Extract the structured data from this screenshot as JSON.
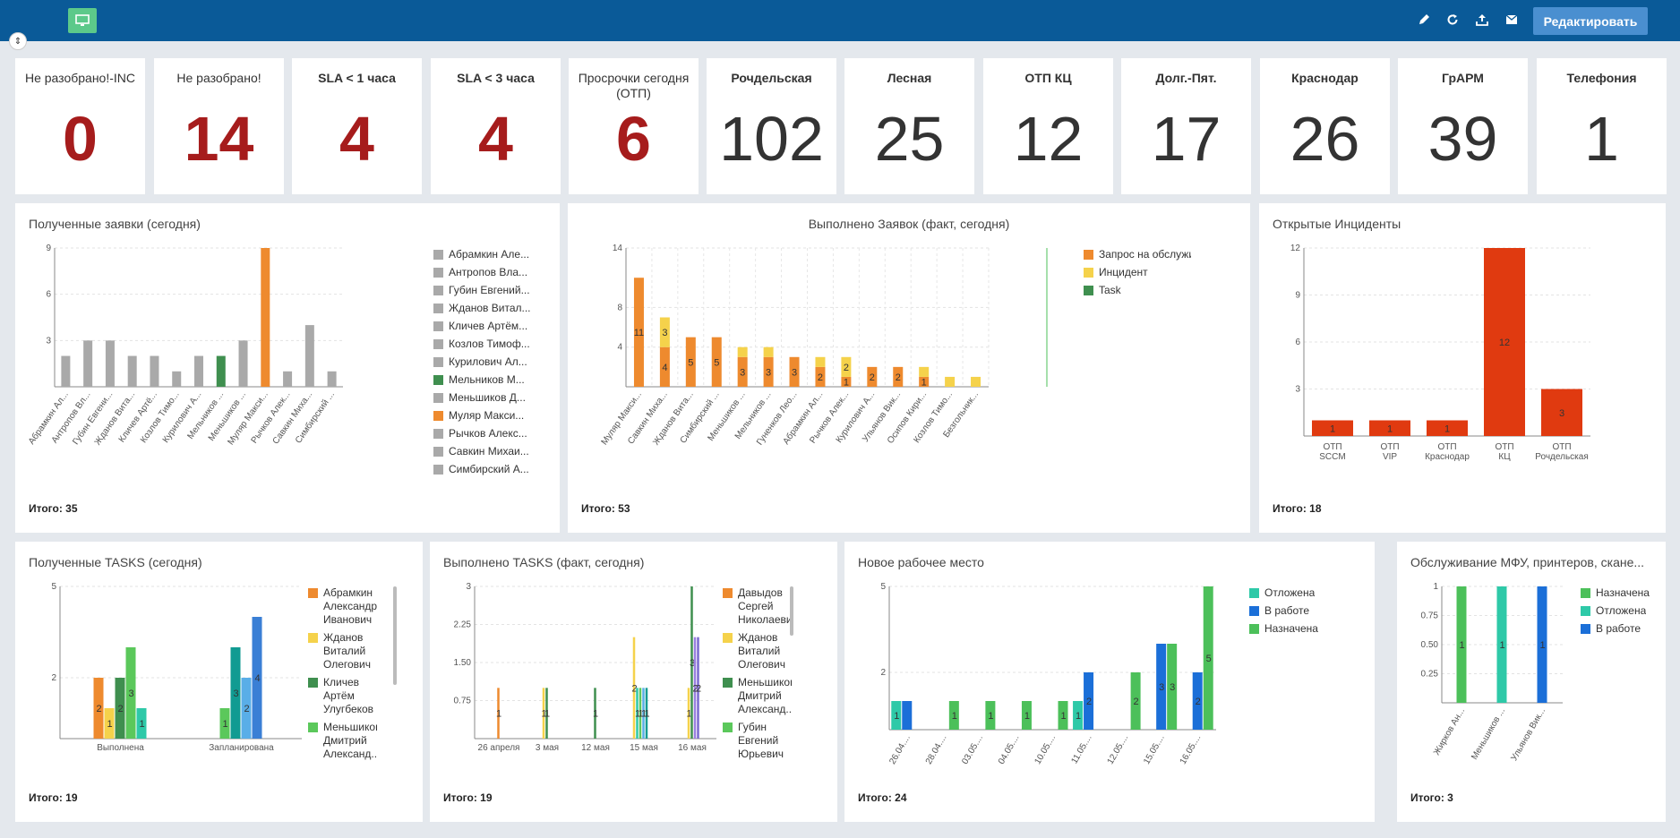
{
  "header": {
    "app_icon": "monitor-icon",
    "icons": [
      "edit-icon",
      "refresh-icon",
      "export-icon",
      "mail-icon"
    ],
    "edit_label": "Редактировать",
    "bg_color": "#0a5a98"
  },
  "kpis": [
    {
      "title": "Не разобрано!-INC",
      "value": "0",
      "style": "red",
      "bold_title": false
    },
    {
      "title": "Не разобрано!",
      "value": "14",
      "style": "red",
      "bold_title": false
    },
    {
      "title": "SLA < 1 часа",
      "value": "4",
      "style": "red",
      "bold_title": true
    },
    {
      "title": "SLA < 3 часа",
      "value": "4",
      "style": "red",
      "bold_title": true
    },
    {
      "title": "Просрочки сегодня (ОТП)",
      "value": "6",
      "style": "red",
      "bold_title": false
    },
    {
      "title": "Рочдельская",
      "value": "102",
      "style": "gray",
      "bold_title": true
    },
    {
      "title": "Лесная",
      "value": "25",
      "style": "gray",
      "bold_title": true
    },
    {
      "title": "ОТП КЦ",
      "value": "12",
      "style": "gray",
      "bold_title": true
    },
    {
      "title": "Долг.-Пят.",
      "value": "17",
      "style": "gray",
      "bold_title": true
    },
    {
      "title": "Краснодар",
      "value": "26",
      "style": "gray",
      "bold_title": true
    },
    {
      "title": "ГрАРМ",
      "value": "39",
      "style": "gray",
      "bold_title": true
    },
    {
      "title": "Телефония",
      "value": "1",
      "style": "gray",
      "bold_title": true
    }
  ],
  "panels": {
    "received": {
      "title": "Полученные заявки (сегодня)",
      "total": "Итого: 35"
    },
    "done": {
      "title": "Выполнено Заявок (факт, сегодня)",
      "total": "Итого: 53"
    },
    "incidents": {
      "title": "Открытые Инциденты",
      "total": "Итого: 18"
    },
    "tasks_received": {
      "title": "Полученные TASKS (сегодня)",
      "total": "Итого: 19"
    },
    "tasks_done": {
      "title": "Выполнено TASKS (факт, сегодня)",
      "total": "Итого: 19"
    },
    "workplace": {
      "title": "Новое рабочее место",
      "total": "Итого: 24"
    },
    "mfu": {
      "title": "Обслуживание МФУ, принтеров, скане...",
      "total": "Итого: 3"
    }
  },
  "chart_data": [
    {
      "id": "received",
      "type": "bar",
      "categories": [
        "Абрамкин Ал...",
        "Антропов Вл...",
        "Губин Евгени...",
        "Жданов Вита...",
        "Кличев Артё...",
        "Козлов Тимо...",
        "Курилович А...",
        "Мельников ...",
        "Меньшиков ...",
        "Муляр Макси...",
        "Рычков Алек...",
        "Савкин Миха...",
        "Симбирский ..."
      ],
      "values": [
        2,
        3,
        3,
        2,
        2,
        1,
        2,
        2,
        3,
        9,
        1,
        4,
        1
      ],
      "colors": [
        "#a9a9a9",
        "#a9a9a9",
        "#a9a9a9",
        "#a9a9a9",
        "#a9a9a9",
        "#a9a9a9",
        "#a9a9a9",
        "#3f8f4f",
        "#a9a9a9",
        "#ee8a2e",
        "#a9a9a9",
        "#a9a9a9",
        "#a9a9a9"
      ],
      "yticks": [
        3,
        6,
        9
      ],
      "ylim": [
        0,
        9
      ],
      "legend": [
        {
          "name": "Абрамкин Але...",
          "color": "#a9a9a9"
        },
        {
          "name": "Антропов Вла...",
          "color": "#a9a9a9"
        },
        {
          "name": "Губин Евгений...",
          "color": "#a9a9a9"
        },
        {
          "name": "Жданов Витал...",
          "color": "#a9a9a9"
        },
        {
          "name": "Кличев Артём...",
          "color": "#a9a9a9"
        },
        {
          "name": "Козлов Тимоф...",
          "color": "#a9a9a9"
        },
        {
          "name": "Курилович Ал...",
          "color": "#a9a9a9"
        },
        {
          "name": "Мельников М...",
          "color": "#3f8f4f"
        },
        {
          "name": "Меньшиков Д...",
          "color": "#a9a9a9"
        },
        {
          "name": "Муляр Макси...",
          "color": "#ee8a2e"
        },
        {
          "name": "Рычков Алекс...",
          "color": "#a9a9a9"
        },
        {
          "name": "Савкин Михаи...",
          "color": "#a9a9a9"
        },
        {
          "name": "Симбирский А...",
          "color": "#a9a9a9"
        }
      ]
    },
    {
      "id": "done",
      "type": "bar",
      "stacked": true,
      "categories": [
        "Муляр Макси...",
        "Савкин Миха...",
        "Жданов Вита...",
        "Симбирский ...",
        "Меньшиков ...",
        "Мельников ...",
        "Гуненков Лео...",
        "Абрамкин Ал...",
        "Рычков Алек...",
        "Курилович А...",
        "Ульянов Вик...",
        "Осипов Кири...",
        "Козлов Тимо...",
        "Безгольник..."
      ],
      "series": [
        {
          "name": "Запрос на обслуживание",
          "color": "#ee8a2e",
          "values": [
            11,
            4,
            5,
            5,
            3,
            3,
            3,
            2,
            1,
            2,
            2,
            1,
            0,
            0
          ],
          "labels": [
            "11",
            "4",
            "5",
            "5",
            "3",
            "3",
            "3",
            "2",
            "1",
            "2",
            "2",
            "1",
            "",
            ""
          ]
        },
        {
          "name": "Инцидент",
          "color": "#f5d24b",
          "values": [
            0,
            3,
            0,
            0,
            1,
            1,
            0,
            1,
            2,
            0,
            0,
            1,
            1,
            1
          ],
          "labels": [
            "",
            "3",
            "",
            "",
            "",
            "",
            "",
            "",
            "2",
            "",
            "",
            "",
            "",
            ""
          ]
        },
        {
          "name": "Task",
          "color": "#3f8f4f",
          "values": [
            0,
            0,
            0,
            0,
            0,
            0,
            0,
            0,
            0,
            0,
            0,
            0,
            0,
            0
          ],
          "labels": []
        }
      ],
      "yticks": [
        4,
        8,
        14
      ],
      "ylim": [
        0,
        14
      ]
    },
    {
      "id": "incidents",
      "type": "bar",
      "categories": [
        "ОТП SCCM",
        "ОТП VIP",
        "ОТП Краснодар",
        "ОТП КЦ",
        "ОТП Рочдельская"
      ],
      "values": [
        1,
        1,
        1,
        12,
        3
      ],
      "color": "#e03a10",
      "yticks": [
        3,
        6,
        9,
        12
      ],
      "ylim": [
        0,
        12
      ]
    },
    {
      "id": "tasks_received",
      "type": "bar",
      "categories": [
        "Выполнена",
        "Запланирована"
      ],
      "series": [
        {
          "name": "Абрамкин Александр Иванович",
          "color": "#ee8a2e",
          "values": [
            2,
            0
          ]
        },
        {
          "name": "Жданов Виталий Олегович",
          "color": "#f5d24b",
          "values": [
            1,
            0
          ]
        },
        {
          "name": "Кличев Артём Улугбеков",
          "color": "#3f8f4f",
          "values": [
            2,
            0
          ]
        },
        {
          "name": "Меньшиков Дмитрий Александ...",
          "color": "#5bc85b",
          "values": [
            3,
            1
          ]
        },
        {
          "name": "",
          "color": "#2ec9a8",
          "values": [
            1,
            0
          ]
        },
        {
          "name": "",
          "color": "#119b92",
          "values": [
            0,
            3
          ]
        },
        {
          "name": "",
          "color": "#59aee8",
          "values": [
            0,
            2
          ]
        },
        {
          "name": "",
          "color": "#3a7fd5",
          "values": [
            0,
            4
          ]
        }
      ],
      "yticks": [
        2,
        5
      ],
      "ylim": [
        0,
        5
      ]
    },
    {
      "id": "tasks_done",
      "type": "bar",
      "categories": [
        "26 апреля",
        "3 мая",
        "12 мая",
        "15 мая",
        "16 мая"
      ],
      "yticks": [
        0.75,
        1.5,
        2.25,
        3
      ],
      "ytick_labels": [
        "0.75",
        "1.50",
        "2.25",
        "3"
      ],
      "ylim": [
        0,
        3
      ],
      "series": [
        {
          "name": "Давыдов Сергей Николаевич",
          "color": "#ee8a2e"
        },
        {
          "name": "Жданов Виталий Олегович",
          "color": "#f5d24b"
        },
        {
          "name": "Меньшиков Дмитрий Александ...",
          "color": "#3f8f4f"
        },
        {
          "name": "Губин Евгений Юрьевич",
          "color": "#5bc85b"
        }
      ],
      "bars": [
        {
          "cat": 0,
          "off": 0,
          "value": 1,
          "color": "#ee8a2e",
          "label": "1"
        },
        {
          "cat": 1,
          "off": -1,
          "value": 1,
          "color": "#f5d24b",
          "label": "1"
        },
        {
          "cat": 1,
          "off": 0,
          "value": 1,
          "color": "#3f8f4f",
          "label": "1"
        },
        {
          "cat": 2,
          "off": 0,
          "value": 1,
          "color": "#3f8f4f",
          "label": "1"
        },
        {
          "cat": 3,
          "off": -3,
          "value": 2,
          "color": "#f5d24b",
          "label": "2"
        },
        {
          "cat": 3,
          "off": -2,
          "value": 1,
          "color": "#2ec9a8",
          "label": "1"
        },
        {
          "cat": 3,
          "off": -1,
          "value": 1,
          "color": "#5bc85b",
          "label": "1"
        },
        {
          "cat": 3,
          "off": 0,
          "value": 1,
          "color": "#59aee8",
          "label": "1"
        },
        {
          "cat": 3,
          "off": 1,
          "value": 1,
          "color": "#119b92",
          "label": "1"
        },
        {
          "cat": 4,
          "off": -1,
          "value": 1,
          "color": "#f5d24b",
          "label": "1"
        },
        {
          "cat": 4,
          "off": 0,
          "value": 3,
          "color": "#3f8f4f",
          "label": "3"
        },
        {
          "cat": 4,
          "off": 1,
          "value": 2,
          "color": "#9a7fe0",
          "label": "2"
        },
        {
          "cat": 4,
          "off": 2,
          "value": 2,
          "color": "#7a6ad0",
          "label": "2"
        }
      ]
    },
    {
      "id": "workplace",
      "type": "bar",
      "categories": [
        "26.04....",
        "28.04....",
        "03.05....",
        "04.05....",
        "10.05....",
        "11.05....",
        "12.05....",
        "15.05....",
        "16.05...."
      ],
      "series": [
        {
          "name": "Отложена",
          "color": "#2ec9a8"
        },
        {
          "name": "В работе",
          "color": "#1b6fd8"
        },
        {
          "name": "Назначена",
          "color": "#4cc05a"
        }
      ],
      "bars": [
        {
          "cat": 0,
          "off": -1,
          "value": 1,
          "color": "#2ec9a8",
          "label": "1"
        },
        {
          "cat": 0,
          "off": 0,
          "value": 1,
          "color": "#1b6fd8",
          "label": ""
        },
        {
          "cat": 1,
          "off": 1,
          "value": 1,
          "color": "#4cc05a",
          "label": "1"
        },
        {
          "cat": 2,
          "off": 1,
          "value": 1,
          "color": "#4cc05a",
          "label": "1"
        },
        {
          "cat": 3,
          "off": 1,
          "value": 1,
          "color": "#4cc05a",
          "label": "1"
        },
        {
          "cat": 4,
          "off": 1,
          "value": 1,
          "color": "#4cc05a",
          "label": "1"
        },
        {
          "cat": 5,
          "off": -1,
          "value": 1,
          "color": "#2ec9a8",
          "label": "1"
        },
        {
          "cat": 5,
          "off": 0,
          "value": 2,
          "color": "#1b6fd8",
          "label": "2"
        },
        {
          "cat": 6,
          "off": 1,
          "value": 2,
          "color": "#4cc05a",
          "label": "2"
        },
        {
          "cat": 7,
          "off": 0,
          "value": 3,
          "color": "#1b6fd8",
          "label": "3"
        },
        {
          "cat": 7,
          "off": 1,
          "value": 3,
          "color": "#4cc05a",
          "label": "3"
        },
        {
          "cat": 8,
          "off": 0,
          "value": 2,
          "color": "#1b6fd8",
          "label": "2"
        },
        {
          "cat": 8,
          "off": 1,
          "value": 5,
          "color": "#4cc05a",
          "label": "5"
        }
      ],
      "yticks": [
        2,
        5
      ],
      "ylim": [
        0,
        5
      ]
    },
    {
      "id": "mfu",
      "type": "bar",
      "categories": [
        "Жирков Ан...",
        "Меньшиков ...",
        "Ульянов Вик..."
      ],
      "series": [
        {
          "name": "Назначена",
          "color": "#4cc05a"
        },
        {
          "name": "Отложена",
          "color": "#2ec9a8"
        },
        {
          "name": "В работе",
          "color": "#1b6fd8"
        }
      ],
      "bars": [
        {
          "cat": 0,
          "off": 0,
          "value": 1,
          "color": "#4cc05a",
          "label": "1"
        },
        {
          "cat": 1,
          "off": 0,
          "value": 1,
          "color": "#2ec9a8",
          "label": "1"
        },
        {
          "cat": 2,
          "off": 0,
          "value": 1,
          "color": "#1b6fd8",
          "label": "1"
        }
      ],
      "yticks": [
        0.25,
        0.5,
        0.75,
        1
      ],
      "ytick_labels": [
        "0.25",
        "0.50",
        "0.75",
        "1"
      ],
      "ylim": [
        0,
        1
      ]
    }
  ]
}
